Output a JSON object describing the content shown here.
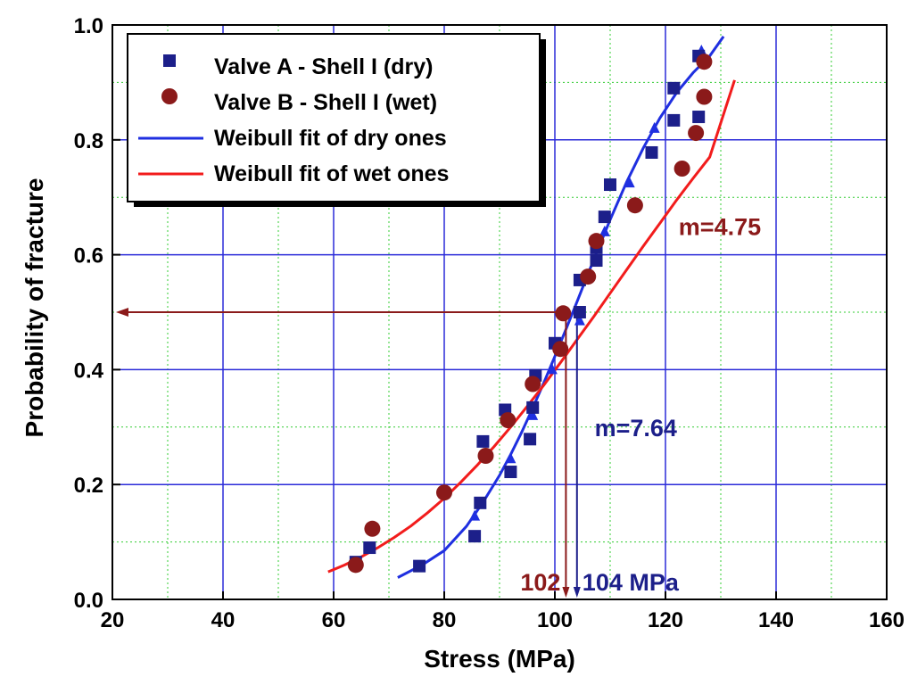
{
  "chart_data": {
    "type": "scatter",
    "xlabel": "Stress (MPa)",
    "ylabel": "Probability of fracture",
    "xlim": [
      20,
      160
    ],
    "ylim": [
      0.0,
      1.0
    ],
    "x_ticks": [
      "20",
      "40",
      "60",
      "80",
      "100",
      "120",
      "140",
      "160"
    ],
    "y_ticks": [
      "0.0",
      "0.2",
      "0.4",
      "0.6",
      "0.8",
      "1.0"
    ],
    "grid": true,
    "legend_position": "top-left",
    "series": [
      {
        "name": "Valve A - Shell I (dry)",
        "kind": "points",
        "marker": "square",
        "color": "#1c1f8a",
        "points": [
          [
            75.5,
            0.058
          ],
          [
            85.5,
            0.11
          ],
          [
            86.5,
            0.168
          ],
          [
            92.0,
            0.222
          ],
          [
            95.5,
            0.279
          ],
          [
            96.0,
            0.334
          ],
          [
            96.5,
            0.39
          ],
          [
            100.0,
            0.446
          ],
          [
            104.5,
            0.5
          ],
          [
            104.5,
            0.556
          ],
          [
            107.5,
            0.612
          ],
          [
            109.0,
            0.666
          ],
          [
            110.0,
            0.722
          ],
          [
            117.5,
            0.778
          ],
          [
            121.5,
            0.834
          ],
          [
            121.5,
            0.89
          ],
          [
            126.0,
            0.946
          ],
          [
            126.0,
            0.84
          ],
          [
            91.0,
            0.33
          ],
          [
            87.0,
            0.275
          ],
          [
            66.5,
            0.09
          ],
          [
            64.0,
            0.065
          ],
          [
            107.5,
            0.59
          ]
        ]
      },
      {
        "name": "Valve B - Shell I (wet)",
        "kind": "points",
        "marker": "circle",
        "color": "#8b1a1a",
        "points": [
          [
            64.0,
            0.06
          ],
          [
            67.0,
            0.123
          ],
          [
            80.0,
            0.186
          ],
          [
            87.5,
            0.25
          ],
          [
            91.5,
            0.312
          ],
          [
            96.0,
            0.375
          ],
          [
            101.0,
            0.436
          ],
          [
            101.5,
            0.498
          ],
          [
            106.0,
            0.562
          ],
          [
            107.5,
            0.624
          ],
          [
            114.5,
            0.686
          ],
          [
            123.0,
            0.75
          ],
          [
            125.5,
            0.812
          ],
          [
            127.0,
            0.875
          ],
          [
            127.0,
            0.936
          ]
        ]
      },
      {
        "name": "Weibull fit of dry ones",
        "kind": "line",
        "color": "#1f2fe0",
        "x": [
          71.6,
          76,
          80,
          84,
          87,
          90,
          92,
          94,
          96,
          98,
          100,
          102,
          104,
          106,
          108,
          110,
          113,
          116,
          119,
          122,
          125,
          128,
          130.5
        ],
        "y": [
          0.038,
          0.06,
          0.085,
          0.127,
          0.169,
          0.216,
          0.252,
          0.291,
          0.333,
          0.377,
          0.423,
          0.47,
          0.518,
          0.567,
          0.614,
          0.661,
          0.727,
          0.786,
          0.838,
          0.882,
          0.917,
          0.946,
          0.98
        ]
      },
      {
        "name": "Weibull fit of wet ones",
        "kind": "line",
        "color": "#f21c1c",
        "x": [
          59,
          62,
          65,
          68,
          71,
          74,
          77,
          80,
          83,
          86,
          89,
          92,
          95,
          98,
          101,
          104,
          107,
          110,
          113,
          116,
          119,
          122,
          125,
          128,
          132.5
        ],
        "y": [
          0.048,
          0.06,
          0.074,
          0.09,
          0.108,
          0.128,
          0.151,
          0.176,
          0.204,
          0.234,
          0.266,
          0.3,
          0.336,
          0.373,
          0.412,
          0.452,
          0.492,
          0.533,
          0.574,
          0.615,
          0.655,
          0.695,
          0.733,
          0.77,
          0.904
        ]
      }
    ],
    "dry_triangles": {
      "color": "#1f2fe0",
      "points": [
        [
          85.5,
          0.145
        ],
        [
          92.0,
          0.245
        ],
        [
          96.0,
          0.32
        ],
        [
          99.5,
          0.4
        ],
        [
          104.5,
          0.485
        ],
        [
          109.0,
          0.64
        ],
        [
          113.5,
          0.725
        ],
        [
          118.0,
          0.82
        ],
        [
          126.5,
          0.955
        ]
      ]
    },
    "annotations": {
      "m_wet": {
        "text": "m=4.75",
        "color": "#8b1a1a",
        "x": 124,
        "y": 0.65
      },
      "m_dry": {
        "text": "m=7.64",
        "color": "#1c1f8a",
        "x": 108,
        "y": 0.3
      },
      "wet_value": {
        "text": "102",
        "color": "#8b1a1a",
        "x": 102
      },
      "dry_value": {
        "text": "104 MPa",
        "color": "#1c1f8a",
        "x": 104
      },
      "median_line": {
        "y": 0.5,
        "color": "#8b1a1a"
      }
    }
  }
}
